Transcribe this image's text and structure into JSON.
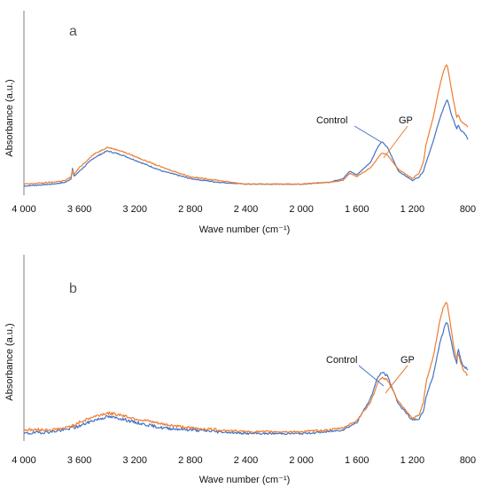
{
  "chart_data": [
    {
      "type": "line",
      "panel_letter": "a",
      "xlabel": "Wave number (cm⁻¹)",
      "ylabel": "Absorbance (a.u.)",
      "x_reversed": true,
      "xlim": [
        4000,
        800
      ],
      "ylim": [
        0,
        1
      ],
      "xticks": [
        4000,
        3600,
        3200,
        2800,
        2400,
        2000,
        1600,
        1200,
        800
      ],
      "xtick_labels": [
        "4 000",
        "3 600",
        "3 200",
        "2 800",
        "2 400",
        "2 000",
        "1 600",
        "1 200",
        "800"
      ],
      "grid": false,
      "legend": "none (curves labeled with leader lines)",
      "series": [
        {
          "name": "Control",
          "color": "#4472C4",
          "x": [
            4000,
            3800,
            3700,
            3660,
            3650,
            3640,
            3600,
            3500,
            3400,
            3300,
            3200,
            3000,
            2800,
            2600,
            2400,
            2200,
            2000,
            1800,
            1700,
            1650,
            1600,
            1500,
            1450,
            1420,
            1380,
            1300,
            1200,
            1150,
            1120,
            1100,
            1050,
            1020,
            1000,
            980,
            960,
            950,
            940,
            920,
            900,
            880,
            870,
            850,
            830,
            810,
            800
          ],
          "y": [
            0.05,
            0.06,
            0.07,
            0.09,
            0.15,
            0.1,
            0.13,
            0.2,
            0.24,
            0.22,
            0.19,
            0.13,
            0.09,
            0.07,
            0.06,
            0.06,
            0.06,
            0.07,
            0.09,
            0.13,
            0.11,
            0.18,
            0.26,
            0.29,
            0.26,
            0.13,
            0.08,
            0.1,
            0.13,
            0.18,
            0.29,
            0.37,
            0.42,
            0.46,
            0.5,
            0.52,
            0.5,
            0.44,
            0.4,
            0.36,
            0.38,
            0.35,
            0.34,
            0.32,
            0.3
          ]
        },
        {
          "name": "GP",
          "color": "#ED7D31",
          "x": [
            4000,
            3800,
            3700,
            3660,
            3650,
            3640,
            3600,
            3500,
            3400,
            3300,
            3200,
            3000,
            2800,
            2600,
            2400,
            2200,
            2000,
            1800,
            1700,
            1650,
            1600,
            1500,
            1450,
            1420,
            1380,
            1300,
            1200,
            1150,
            1120,
            1100,
            1050,
            1020,
            1000,
            980,
            960,
            950,
            940,
            920,
            900,
            880,
            870,
            850,
            830,
            810,
            800
          ],
          "y": [
            0.06,
            0.07,
            0.08,
            0.1,
            0.14,
            0.11,
            0.15,
            0.22,
            0.26,
            0.24,
            0.21,
            0.15,
            0.1,
            0.08,
            0.06,
            0.06,
            0.06,
            0.07,
            0.08,
            0.12,
            0.1,
            0.15,
            0.2,
            0.23,
            0.22,
            0.14,
            0.09,
            0.12,
            0.18,
            0.28,
            0.42,
            0.53,
            0.6,
            0.66,
            0.7,
            0.71,
            0.67,
            0.58,
            0.5,
            0.42,
            0.44,
            0.4,
            0.39,
            0.38,
            0.37
          ]
        }
      ]
    },
    {
      "type": "line",
      "panel_letter": "b",
      "xlabel": "Wave number (cm⁻¹)",
      "ylabel": "Absorbance (a.u.)",
      "x_reversed": true,
      "xlim": [
        4000,
        800
      ],
      "ylim": [
        0,
        1
      ],
      "xticks": [
        4000,
        3600,
        3200,
        2800,
        2400,
        2000,
        1600,
        1200,
        800
      ],
      "xtick_labels": [
        "4 000",
        "3 600",
        "3 200",
        "2 800",
        "2 400",
        "2 000",
        "1 600",
        "1 200",
        "800"
      ],
      "grid": false,
      "legend": "none (curves labeled with leader lines)",
      "series": [
        {
          "name": "Control",
          "color": "#4472C4",
          "x": [
            4000,
            3800,
            3700,
            3660,
            3650,
            3640,
            3600,
            3500,
            3400,
            3300,
            3200,
            3000,
            2800,
            2600,
            2400,
            2200,
            2000,
            1800,
            1700,
            1650,
            1600,
            1500,
            1450,
            1420,
            1380,
            1300,
            1200,
            1150,
            1120,
            1100,
            1050,
            1020,
            1000,
            980,
            960,
            950,
            940,
            920,
            900,
            880,
            870,
            850,
            830,
            810,
            800
          ],
          "y": [
            0.04,
            0.05,
            0.06,
            0.07,
            0.08,
            0.07,
            0.08,
            0.11,
            0.13,
            0.12,
            0.1,
            0.07,
            0.06,
            0.05,
            0.04,
            0.04,
            0.04,
            0.05,
            0.06,
            0.08,
            0.1,
            0.23,
            0.34,
            0.37,
            0.35,
            0.2,
            0.11,
            0.12,
            0.16,
            0.24,
            0.35,
            0.46,
            0.53,
            0.58,
            0.63,
            0.64,
            0.61,
            0.54,
            0.46,
            0.42,
            0.5,
            0.43,
            0.4,
            0.39,
            0.38
          ]
        },
        {
          "name": "GP",
          "color": "#ED7D31",
          "x": [
            4000,
            3800,
            3700,
            3660,
            3650,
            3640,
            3600,
            3500,
            3400,
            3300,
            3200,
            3000,
            2800,
            2600,
            2400,
            2200,
            2000,
            1800,
            1700,
            1650,
            1600,
            1500,
            1450,
            1420,
            1380,
            1300,
            1200,
            1150,
            1120,
            1100,
            1050,
            1020,
            1000,
            980,
            960,
            950,
            940,
            920,
            900,
            880,
            870,
            850,
            830,
            810,
            800
          ],
          "y": [
            0.06,
            0.06,
            0.07,
            0.08,
            0.09,
            0.08,
            0.1,
            0.13,
            0.15,
            0.14,
            0.12,
            0.09,
            0.07,
            0.06,
            0.05,
            0.05,
            0.05,
            0.06,
            0.07,
            0.09,
            0.11,
            0.21,
            0.31,
            0.34,
            0.33,
            0.21,
            0.12,
            0.14,
            0.21,
            0.32,
            0.45,
            0.57,
            0.65,
            0.71,
            0.74,
            0.74,
            0.7,
            0.6,
            0.5,
            0.44,
            0.47,
            0.42,
            0.38,
            0.36,
            0.35
          ]
        }
      ]
    }
  ]
}
